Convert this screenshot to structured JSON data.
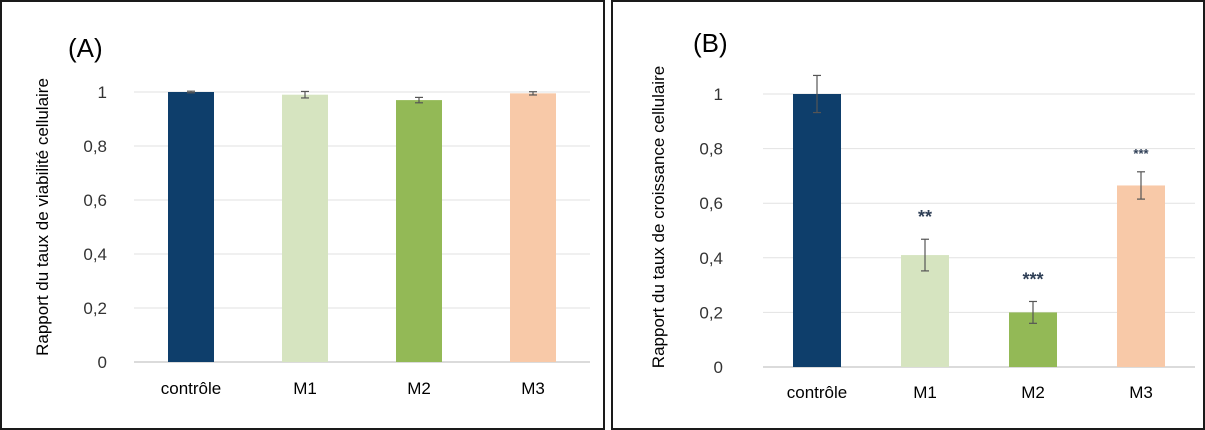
{
  "chart_data": [
    {
      "type": "bar",
      "panel_label": "(A)",
      "ylabel": "Rapport du taux de viabilité cellulaire",
      "categories": [
        "contrôle",
        "M1",
        "M2",
        "M3"
      ],
      "values": [
        1.0,
        0.99,
        0.97,
        0.995
      ],
      "errors": [
        0.003,
        0.012,
        0.01,
        0.006
      ],
      "significance": [
        "",
        "",
        "",
        ""
      ],
      "colors": [
        "#0e3e6b",
        "#d6e4c0",
        "#93b956",
        "#f8c9a8"
      ],
      "ylim": [
        0,
        1.1
      ],
      "yticks": [
        0,
        0.2,
        0.4,
        0.6,
        0.8,
        1
      ],
      "ytick_labels": [
        "0",
        "0,2",
        "0,4",
        "0,6",
        "0,8",
        "1"
      ],
      "grid": true
    },
    {
      "type": "bar",
      "panel_label": "(B)",
      "ylabel": "Rapport du taux de croissance cellulaire",
      "categories": [
        "contrôle",
        "M1",
        "M2",
        "M3"
      ],
      "values": [
        1.0,
        0.41,
        0.2,
        0.665
      ],
      "errors": [
        0.068,
        0.058,
        0.04,
        0.05
      ],
      "significance": [
        "",
        "**",
        "***",
        "***"
      ],
      "colors": [
        "#0e3e6b",
        "#d6e4c0",
        "#93b956",
        "#f8c9a8"
      ],
      "ylim": [
        0,
        1.1
      ],
      "yticks": [
        0,
        0.2,
        0.4,
        0.6,
        0.8,
        1
      ],
      "ytick_labels": [
        "0",
        "0,2",
        "0,4",
        "0,6",
        "0,8",
        "1"
      ],
      "grid": true
    }
  ]
}
